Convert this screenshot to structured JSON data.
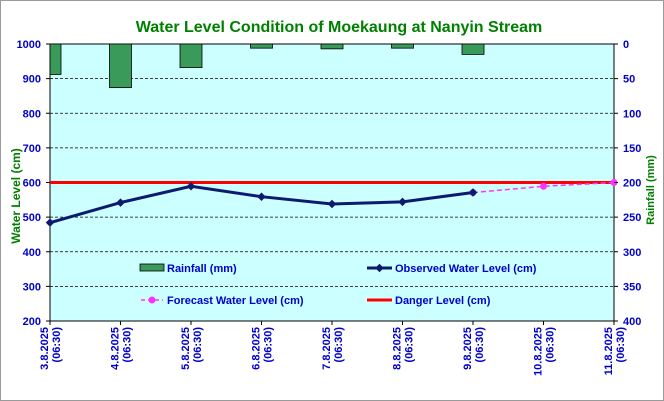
{
  "chart_data": {
    "type": "bar+line",
    "title": "Water Level Condition of Moekaung at Nanyin Stream",
    "ylabel": "Water Level (cm)",
    "y2label": "Rainfall (mm)",
    "ylim": [
      200,
      1000
    ],
    "y2lim": [
      0,
      400
    ],
    "y2_reversed": true,
    "yticks": [
      "200",
      "300",
      "400",
      "500",
      "600",
      "700",
      "800",
      "900",
      "1000"
    ],
    "y2ticks": [
      "0",
      "50",
      "100",
      "150",
      "200",
      "250",
      "300",
      "350",
      "400"
    ],
    "categories": [
      [
        "3.8.2025",
        "(06:30)"
      ],
      [
        "4.8.2025",
        "(06:30)"
      ],
      [
        "5.8.2025",
        "(06:30)"
      ],
      [
        "6.8.2025",
        "(06:30)"
      ],
      [
        "7.8.2025",
        "(06:30)"
      ],
      [
        "8.8.2025",
        "(06:30)"
      ],
      [
        "9.8.2025",
        "(06:30)"
      ],
      [
        "10.8.2025",
        "(06:30)"
      ],
      [
        "11.8.2025",
        "(06:30)"
      ]
    ],
    "series": [
      {
        "name": "Rainfall (mm)",
        "type": "bar",
        "axis": "right",
        "color": "#3a9a5a",
        "values": [
          44,
          63,
          34,
          6,
          7,
          6,
          15,
          null,
          null
        ]
      },
      {
        "name": "Observed Water Level (cm)",
        "type": "line",
        "axis": "left",
        "color": "#0d1a6e",
        "values": [
          484,
          542,
          589,
          559,
          538,
          544,
          571,
          null,
          null
        ]
      },
      {
        "name": "Forecast Water Level (cm)",
        "type": "line",
        "dashed": true,
        "axis": "left",
        "color": "#ff33ff",
        "values": [
          null,
          null,
          null,
          null,
          null,
          null,
          571,
          589,
          600
        ]
      },
      {
        "name": "Danger Level (cm)",
        "type": "line",
        "axis": "left",
        "color": "#ff0000",
        "constant": 600
      }
    ],
    "grid": "horizontal-dashed",
    "legend": "inside-bottom",
    "colors": {
      "plot_background": "#ccffff",
      "title": "#008000",
      "axis_text": "#0000cc"
    }
  }
}
